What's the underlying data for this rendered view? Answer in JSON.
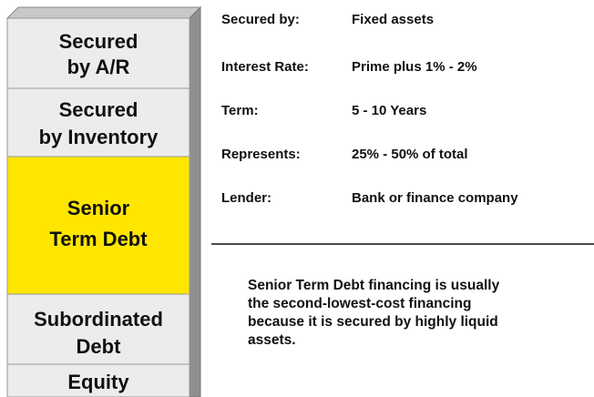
{
  "stack": [
    {
      "lines": [
        "Secured",
        "by A/R"
      ]
    },
    {
      "lines": [
        "Secured",
        "by Inventory"
      ]
    },
    {
      "lines": [
        "Senior",
        "Term Debt"
      ]
    },
    {
      "lines": [
        "Subordinated",
        "Debt"
      ]
    },
    {
      "lines": [
        "Equity"
      ]
    }
  ],
  "details": [
    {
      "label": "Secured by:",
      "value": "Fixed assets"
    },
    {
      "label": "Interest Rate:",
      "value": "Prime plus 1% - 2%"
    },
    {
      "label": "Term:",
      "value": "5 - 10 Years"
    },
    {
      "label": "Represents:",
      "value": "25% - 50% of total"
    },
    {
      "label": "Lender:",
      "value": "Bank or finance company"
    }
  ],
  "note": [
    "Senior Term Debt financing is usually",
    "the second-lowest-cost financing",
    "because it is secured by highly liquid",
    "assets."
  ]
}
